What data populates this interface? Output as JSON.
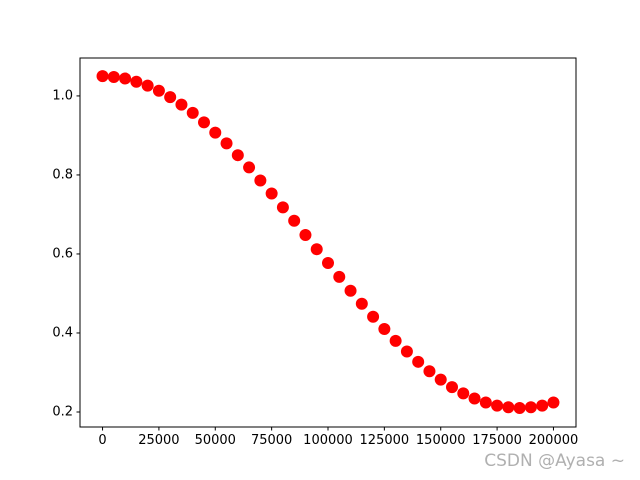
{
  "chart_data": {
    "type": "scatter",
    "x": [
      0,
      5000,
      10000,
      15000,
      20000,
      25000,
      30000,
      35000,
      40000,
      45000,
      50000,
      55000,
      60000,
      65000,
      70000,
      75000,
      80000,
      85000,
      90000,
      95000,
      100000,
      105000,
      110000,
      115000,
      120000,
      125000,
      130000,
      135000,
      140000,
      145000,
      150000,
      155000,
      160000,
      165000,
      170000,
      175000,
      180000,
      185000,
      190000,
      195000,
      200000
    ],
    "values": [
      1.05,
      1.048,
      1.044,
      1.036,
      1.026,
      1.013,
      0.997,
      0.978,
      0.957,
      0.933,
      0.907,
      0.88,
      0.85,
      0.819,
      0.786,
      0.753,
      0.718,
      0.684,
      0.648,
      0.612,
      0.577,
      0.542,
      0.507,
      0.474,
      0.441,
      0.41,
      0.38,
      0.353,
      0.327,
      0.303,
      0.282,
      0.263,
      0.247,
      0.234,
      0.224,
      0.216,
      0.212,
      0.21,
      0.212,
      0.216,
      0.224
    ],
    "color": "#ff0000",
    "xlim": [
      -10000,
      210000
    ],
    "xticks": [
      0,
      25000,
      50000,
      75000,
      100000,
      125000,
      150000,
      175000,
      200000
    ],
    "ylim": [
      0.162,
      1.096
    ],
    "yticks": [
      0.2,
      0.4,
      0.6,
      0.8,
      {
        "value": 1,
        "label": "1.0"
      }
    ],
    "grid": false,
    "watermark": "CSDN @Ayasa ~"
  }
}
